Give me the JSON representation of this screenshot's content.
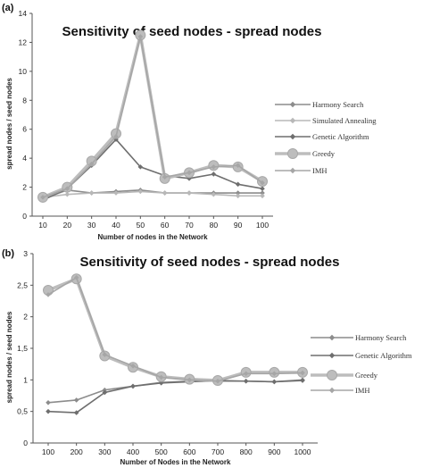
{
  "chart_data": [
    {
      "panel": "(a)",
      "type": "line",
      "title": "Sensitivity of seed nodes - spread nodes",
      "xlabel": "Number of nodes in the Network",
      "ylabel": "spread nodes / seed nodes",
      "x": [
        10,
        20,
        30,
        40,
        50,
        60,
        70,
        80,
        90,
        100
      ],
      "ylim": [
        0,
        14
      ],
      "yticks": [
        "0",
        "2",
        "4",
        "6",
        "8",
        "10",
        "12",
        "14"
      ],
      "grid": false,
      "legend": "right",
      "series": [
        {
          "name": "Harmony Search",
          "color": "#8c8c8c",
          "marker": "diamond",
          "values": [
            1.2,
            1.8,
            1.6,
            1.7,
            1.8,
            1.6,
            1.6,
            1.6,
            1.6,
            1.6
          ]
        },
        {
          "name": "Simulated Annealing",
          "color": "#b8b8b8",
          "marker": "diamond",
          "values": [
            1.3,
            1.5,
            1.6,
            1.6,
            1.7,
            1.6,
            1.6,
            1.5,
            1.4,
            1.4
          ]
        },
        {
          "name": "Genetic Algorithm",
          "color": "#6e6e6e",
          "marker": "diamond",
          "values": [
            1.1,
            1.9,
            3.5,
            5.3,
            3.4,
            2.8,
            2.6,
            2.9,
            2.2,
            1.9
          ]
        },
        {
          "name": "Greedy",
          "color": "#bdbdbd",
          "marker": "circle",
          "values": [
            1.3,
            2.0,
            3.8,
            5.7,
            12.5,
            2.6,
            3.0,
            3.5,
            3.4,
            2.4
          ]
        },
        {
          "name": "IMH",
          "color": "#a6a6a6",
          "marker": "diamond",
          "values": [
            1.3,
            1.9,
            3.6,
            5.5,
            12.4,
            2.7,
            3.0,
            3.4,
            3.5,
            2.3
          ]
        }
      ]
    },
    {
      "panel": "(b)",
      "type": "line",
      "title": "Sensitivity of seed nodes - spread nodes",
      "xlabel": "Number of Nodes in the Network",
      "ylabel": "spread nodes / seed nodes",
      "x": [
        100,
        200,
        300,
        400,
        500,
        600,
        700,
        800,
        900,
        1000
      ],
      "ylim": [
        0,
        3
      ],
      "yticks": [
        "0",
        "0,5",
        "1",
        "1,5",
        "2",
        "2,5",
        "3"
      ],
      "grid": false,
      "legend": "right",
      "series": [
        {
          "name": "Harmony Search",
          "color": "#8c8c8c",
          "marker": "diamond",
          "values": [
            0.64,
            0.68,
            0.84,
            0.9,
            0.96,
            0.98,
            0.98,
            0.98,
            0.97,
            1.0
          ]
        },
        {
          "name": "Genetic Algorithm",
          "color": "#6e6e6e",
          "marker": "diamond",
          "values": [
            0.5,
            0.48,
            0.8,
            0.9,
            0.95,
            0.97,
            0.99,
            0.98,
            0.97,
            0.99
          ]
        },
        {
          "name": "Greedy",
          "color": "#bdbdbd",
          "marker": "circle",
          "values": [
            2.42,
            2.6,
            1.38,
            1.2,
            1.05,
            1.01,
            0.99,
            1.12,
            1.12,
            1.12
          ]
        },
        {
          "name": "IMH",
          "color": "#a6a6a6",
          "marker": "diamond",
          "values": [
            2.35,
            2.62,
            1.4,
            1.22,
            1.04,
            1.0,
            0.98,
            1.1,
            1.1,
            1.11
          ]
        }
      ]
    }
  ]
}
